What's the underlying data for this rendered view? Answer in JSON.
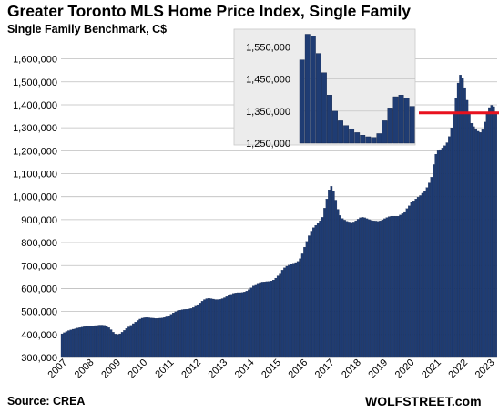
{
  "title": "Greater Toronto  MLS Home Price Index, Single Family",
  "subtitle": "Single Family Benchmark, C$",
  "source": "Source: CREA",
  "credit": "WOLFSTREET.com",
  "colors": {
    "bar": "#1f3c73",
    "bar_edge": "#0d1f45",
    "line": "#e8121f",
    "grid": "#bdbdbd",
    "inset_bg": "#ececec"
  },
  "chart_data": [
    {
      "type": "bar",
      "ylim": [
        300000,
        1650000
      ],
      "y_ticks": [
        300000,
        400000,
        500000,
        600000,
        700000,
        800000,
        900000,
        1000000,
        1100000,
        1200000,
        1300000,
        1400000,
        1500000,
        1600000
      ],
      "y_tick_labels": [
        "300,000",
        "400,000",
        "500,000",
        "600,000",
        "700,000",
        "800,000",
        "900,000",
        "1,000,000",
        "1,100,000",
        "1,200,000",
        "1,300,000",
        "1,400,000",
        "1,500,000",
        "1,600,000"
      ],
      "x_tick_labels": [
        "2007",
        "2008",
        "2009",
        "2010",
        "2011",
        "2012",
        "2013",
        "2014",
        "2015",
        "2016",
        "2017",
        "2018",
        "2019",
        "2020",
        "2021",
        "2022",
        "2023"
      ],
      "grid": true,
      "start_month": "2007-01",
      "values": [
        403000,
        408000,
        413000,
        417000,
        420000,
        423000,
        425000,
        428000,
        430000,
        432000,
        434000,
        435000,
        436000,
        437000,
        438000,
        439000,
        440000,
        441000,
        441000,
        440000,
        436000,
        430000,
        421000,
        410000,
        402000,
        400000,
        403000,
        410000,
        418000,
        426000,
        433000,
        440000,
        447000,
        454000,
        461000,
        467000,
        471000,
        473000,
        474000,
        473000,
        472000,
        471000,
        470000,
        470000,
        471000,
        472000,
        474000,
        477000,
        482000,
        488000,
        494000,
        499000,
        503000,
        506000,
        508000,
        509000,
        510000,
        511000,
        513000,
        517000,
        523000,
        530000,
        537000,
        545000,
        552000,
        556000,
        557000,
        556000,
        554000,
        552000,
        552000,
        553000,
        556000,
        560000,
        565000,
        570000,
        575000,
        579000,
        581000,
        582000,
        582000,
        583000,
        585000,
        589000,
        595000,
        603000,
        611000,
        618000,
        623000,
        626000,
        628000,
        629000,
        630000,
        631000,
        633000,
        637000,
        645000,
        655000,
        667000,
        680000,
        690000,
        697000,
        702000,
        706000,
        710000,
        713000,
        718000,
        730000,
        755000,
        780000,
        805000,
        830000,
        850000,
        865000,
        875000,
        885000,
        895000,
        910000,
        950000,
        990000,
        1030000,
        1045000,
        1025000,
        985000,
        945000,
        918000,
        905000,
        898000,
        893000,
        890000,
        888000,
        890000,
        895000,
        902000,
        908000,
        910000,
        908000,
        904000,
        900000,
        897000,
        895000,
        894000,
        893000,
        895000,
        899000,
        904000,
        909000,
        913000,
        915000,
        915000,
        915000,
        915000,
        920000,
        926000,
        935000,
        948000,
        960000,
        975000,
        982000,
        990000,
        998000,
        1005000,
        1015000,
        1025000,
        1040000,
        1060000,
        1085000,
        1140000,
        1185000,
        1200000,
        1205000,
        1212000,
        1222000,
        1235000,
        1262000,
        1300000,
        1360000,
        1430000,
        1495000,
        1530000,
        1518000,
        1475000,
        1420000,
        1360000,
        1320000,
        1305000,
        1292000,
        1285000,
        1280000,
        1292000,
        1325000,
        1360000,
        1388000,
        1398000,
        1392000,
        1370000
      ]
    },
    {
      "type": "bar",
      "ylim": [
        1250000,
        1600000
      ],
      "y_ticks": [
        1250000,
        1350000,
        1450000,
        1550000
      ],
      "y_tick_labels": [
        "1,250,000",
        "1,350,000",
        "1,450,000",
        "1,550,000"
      ],
      "grid": true,
      "values": [
        1510000,
        1590000,
        1585000,
        1530000,
        1470000,
        1400000,
        1350000,
        1320000,
        1305000,
        1295000,
        1283000,
        1275000,
        1270000,
        1268000,
        1280000,
        1320000,
        1360000,
        1395000,
        1400000,
        1390000,
        1365000
      ]
    }
  ],
  "reference_line_value": 1365000
}
